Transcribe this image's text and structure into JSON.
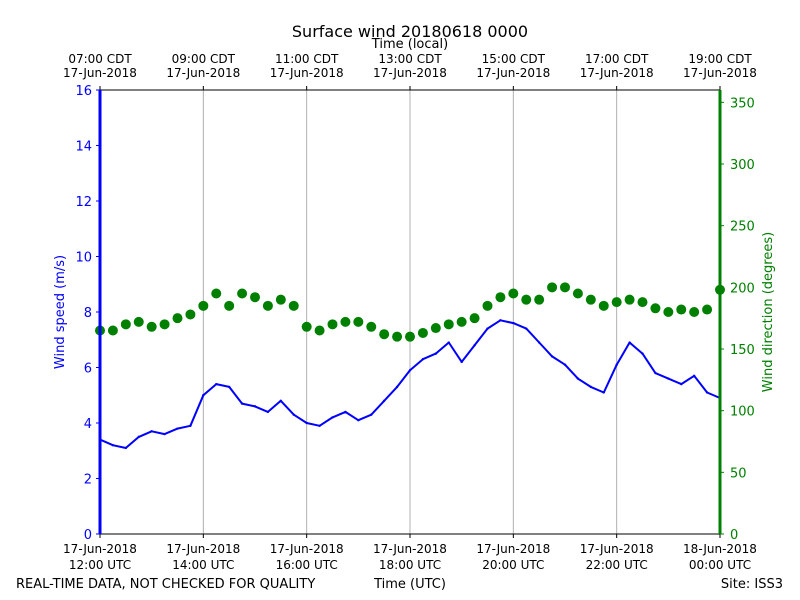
{
  "chart_data": {
    "type": "line",
    "title": "Surface wind 20180618 0000",
    "top_axis_label": "Time (local)",
    "xlabel": "Time (UTC)",
    "ylabel_left": "Wind speed (m/s)",
    "ylabel_right": "Wind direction (degrees)",
    "footer_left": "REAL-TIME DATA, NOT CHECKED FOR QUALITY",
    "footer_right": "Site: ISS3",
    "x_range_hours_utc": [
      12,
      24
    ],
    "ylim_left": [
      0,
      16
    ],
    "ylim_right": [
      0,
      360
    ],
    "yticks_left": [
      "0",
      "2",
      "4",
      "6",
      "8",
      "10",
      "12",
      "14",
      "16"
    ],
    "yticks_right": [
      "0",
      "50",
      "100",
      "150",
      "200",
      "250",
      "300",
      "350"
    ],
    "xticks_bottom": [
      {
        "line1": "17-Jun-2018",
        "line2": "12:00 UTC"
      },
      {
        "line1": "17-Jun-2018",
        "line2": "14:00 UTC"
      },
      {
        "line1": "17-Jun-2018",
        "line2": "16:00 UTC"
      },
      {
        "line1": "17-Jun-2018",
        "line2": "18:00 UTC"
      },
      {
        "line1": "17-Jun-2018",
        "line2": "20:00 UTC"
      },
      {
        "line1": "17-Jun-2018",
        "line2": "22:00 UTC"
      },
      {
        "line1": "18-Jun-2018",
        "line2": "00:00 UTC"
      }
    ],
    "xticks_top": [
      {
        "line1": "07:00 CDT",
        "line2": "17-Jun-2018"
      },
      {
        "line1": "09:00 CDT",
        "line2": "17-Jun-2018"
      },
      {
        "line1": "11:00 CDT",
        "line2": "17-Jun-2018"
      },
      {
        "line1": "13:00 CDT",
        "line2": "17-Jun-2018"
      },
      {
        "line1": "15:00 CDT",
        "line2": "17-Jun-2018"
      },
      {
        "line1": "17:00 CDT",
        "line2": "17-Jun-2018"
      },
      {
        "line1": "19:00 CDT",
        "line2": "17-Jun-2018"
      }
    ],
    "colors": {
      "speed": "#0000ff",
      "direction": "#008000",
      "grid": "#b0b0b0",
      "axis": "#000000"
    },
    "series": [
      {
        "name": "Wind speed (m/s)",
        "axis": "left",
        "style": "line",
        "x_hours": [
          12.0,
          12.25,
          12.5,
          12.75,
          13.0,
          13.25,
          13.5,
          13.75,
          14.0,
          14.25,
          14.5,
          14.75,
          15.0,
          15.25,
          15.5,
          15.75,
          16.0,
          16.25,
          16.5,
          16.75,
          17.0,
          17.25,
          17.5,
          17.75,
          18.0,
          18.25,
          18.5,
          18.75,
          19.0,
          19.25,
          19.5,
          19.75,
          20.0,
          20.25,
          20.5,
          20.75,
          21.0,
          21.25,
          21.5,
          21.75,
          22.0,
          22.25,
          22.5,
          22.75,
          23.0,
          23.25,
          23.5,
          23.75,
          24.0
        ],
        "values": [
          3.4,
          3.2,
          3.1,
          3.5,
          3.7,
          3.6,
          3.8,
          3.9,
          5.0,
          5.4,
          5.3,
          4.7,
          4.6,
          4.4,
          4.8,
          4.3,
          4.0,
          3.9,
          4.2,
          4.4,
          4.1,
          4.3,
          4.8,
          5.3,
          5.9,
          6.3,
          6.5,
          6.9,
          6.2,
          6.8,
          7.4,
          7.7,
          7.6,
          7.4,
          6.9,
          6.4,
          6.1,
          5.6,
          5.3,
          5.1,
          6.1,
          6.9,
          6.5,
          5.8,
          5.6,
          5.4,
          5.7,
          5.1,
          4.9
        ]
      },
      {
        "name": "Wind direction (degrees)",
        "axis": "right",
        "style": "markers",
        "x_hours": [
          12.0,
          12.25,
          12.5,
          12.75,
          13.0,
          13.25,
          13.5,
          13.75,
          14.0,
          14.25,
          14.5,
          14.75,
          15.0,
          15.25,
          15.5,
          15.75,
          16.0,
          16.25,
          16.5,
          16.75,
          17.0,
          17.25,
          17.5,
          17.75,
          18.0,
          18.25,
          18.5,
          18.75,
          19.0,
          19.25,
          19.5,
          19.75,
          20.0,
          20.25,
          20.5,
          20.75,
          21.0,
          21.25,
          21.5,
          21.75,
          22.0,
          22.25,
          22.5,
          22.75,
          23.0,
          23.25,
          23.5,
          23.75,
          24.0
        ],
        "values": [
          165,
          165,
          170,
          172,
          168,
          170,
          175,
          178,
          185,
          195,
          185,
          195,
          192,
          185,
          190,
          185,
          168,
          165,
          170,
          172,
          172,
          168,
          162,
          160,
          160,
          163,
          167,
          170,
          172,
          175,
          185,
          192,
          195,
          190,
          190,
          200,
          200,
          195,
          190,
          185,
          188,
          190,
          188,
          183,
          180,
          182,
          180,
          182,
          198
        ]
      }
    ]
  }
}
